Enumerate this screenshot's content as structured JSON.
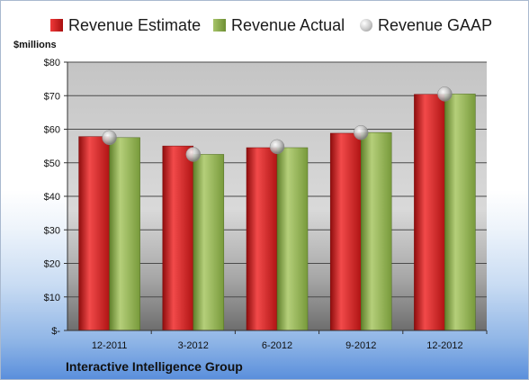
{
  "legend": {
    "estimate": "Revenue Estimate",
    "actual": "Revenue Actual",
    "gaap": "Revenue GAAP"
  },
  "units_label": "$millions",
  "company": "Interactive Intelligence Group",
  "colors": {
    "estimate": "#c81e1e",
    "actual": "#8aa84a",
    "gaap": "#c0c0c0"
  },
  "chart_data": {
    "type": "bar",
    "title": "",
    "ylabel": "$millions",
    "ylim": [
      0,
      80
    ],
    "y_ticks": [
      "$-",
      "$10",
      "$20",
      "$30",
      "$40",
      "$50",
      "$60",
      "$70",
      "$80"
    ],
    "grid": true,
    "legend_position": "top",
    "categories": [
      "12-2011",
      "3-2012",
      "6-2012",
      "9-2012",
      "12-2012"
    ],
    "series": [
      {
        "name": "Revenue Estimate",
        "type": "bar",
        "values": [
          57.8,
          55.0,
          54.5,
          58.8,
          70.4
        ]
      },
      {
        "name": "Revenue Actual",
        "type": "bar",
        "values": [
          57.5,
          52.5,
          54.5,
          59.0,
          70.5
        ]
      },
      {
        "name": "Revenue GAAP",
        "type": "scatter",
        "values": [
          57.5,
          52.5,
          54.8,
          59.0,
          70.5
        ]
      }
    ],
    "footer": "Interactive Intelligence Group"
  }
}
